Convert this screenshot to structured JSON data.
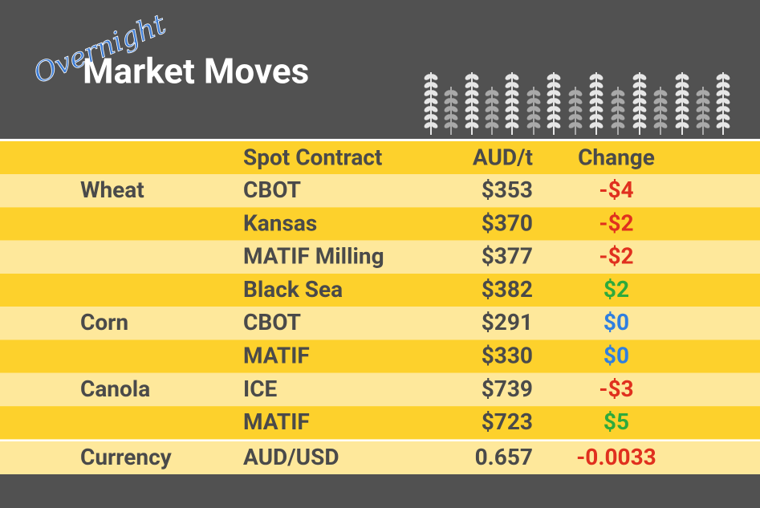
{
  "header": {
    "overline": "Overnight",
    "title": "Market Moves"
  },
  "table": {
    "columns": [
      "Spot Contract",
      "AUD/t",
      "Change"
    ],
    "rows": [
      {
        "commodity": "Wheat",
        "contract": "CBOT",
        "price": "$353",
        "change": "-$4",
        "color": "#e0301e"
      },
      {
        "contract": "Kansas",
        "price": "$370",
        "change": "-$2",
        "color": "#e0301e"
      },
      {
        "contract": "MATIF Milling",
        "price": "$377",
        "change": "-$2",
        "color": "#e0301e"
      },
      {
        "contract": "Black Sea",
        "price": "$382",
        "change": "$2",
        "color": "#2eaa3c"
      },
      {
        "commodity": "Corn",
        "contract": "CBOT",
        "price": "$291",
        "change": "$0",
        "color": "#2f7fe0"
      },
      {
        "contract": "MATIF",
        "price": "$330",
        "change": "$0",
        "color": "#2f7fe0"
      },
      {
        "commodity": "Canola",
        "contract": "ICE",
        "price": "$739",
        "change": "-$3",
        "color": "#e0301e"
      },
      {
        "contract": "MATIF",
        "price": "$723",
        "change": "$5",
        "color": "#2eaa3c"
      },
      {
        "commodity": "Currency",
        "contract": "AUD/USD",
        "price": "0.657",
        "change": "-0.0033",
        "color": "#e0301e"
      }
    ]
  }
}
